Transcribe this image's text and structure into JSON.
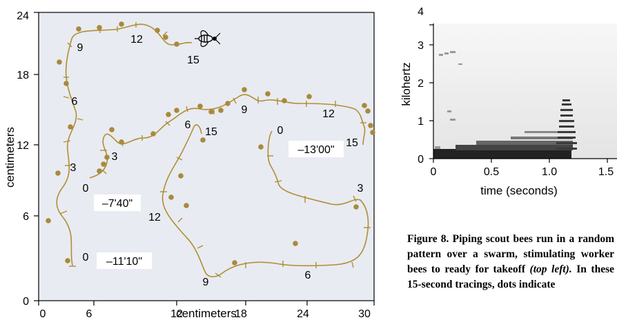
{
  "left_plot": {
    "x_ticks": [
      "0",
      "6",
      "12",
      "18",
      "24",
      "30"
    ],
    "y_ticks": [
      "0",
      "6",
      "12",
      "18",
      "24"
    ],
    "x_label": "centimeters",
    "y_label": "centimeters",
    "time_labels": [
      "–11'10\"",
      "–7'40\"",
      "–13'00\""
    ],
    "path_labels": {
      "a": [
        "0",
        "3",
        "6",
        "9",
        "12",
        "15"
      ],
      "b": [
        "0",
        "3",
        "6",
        "9",
        "12",
        "15"
      ],
      "c": [
        "0",
        "3",
        "6",
        "9",
        "12",
        "15"
      ]
    },
    "colors": {
      "background": "#e8ebf1",
      "trace": "#b08d35",
      "dot": "#a88a3a"
    },
    "icon": "bee-icon"
  },
  "spectrogram": {
    "y_ticks": [
      "0",
      "1",
      "2",
      "3",
      "4"
    ],
    "x_ticks": [
      "0",
      "0.5",
      "1.0",
      "1.5"
    ],
    "x_label": "time (seconds)",
    "y_label": "kilohertz"
  },
  "caption": {
    "text1": "Figure 8. Piping scout bees run in a random pattern over a swarm, stimulating worker bees to ready for takeoff ",
    "italic1": "(top left).",
    "text2": " In these 15-second tracings, dots indicate"
  }
}
